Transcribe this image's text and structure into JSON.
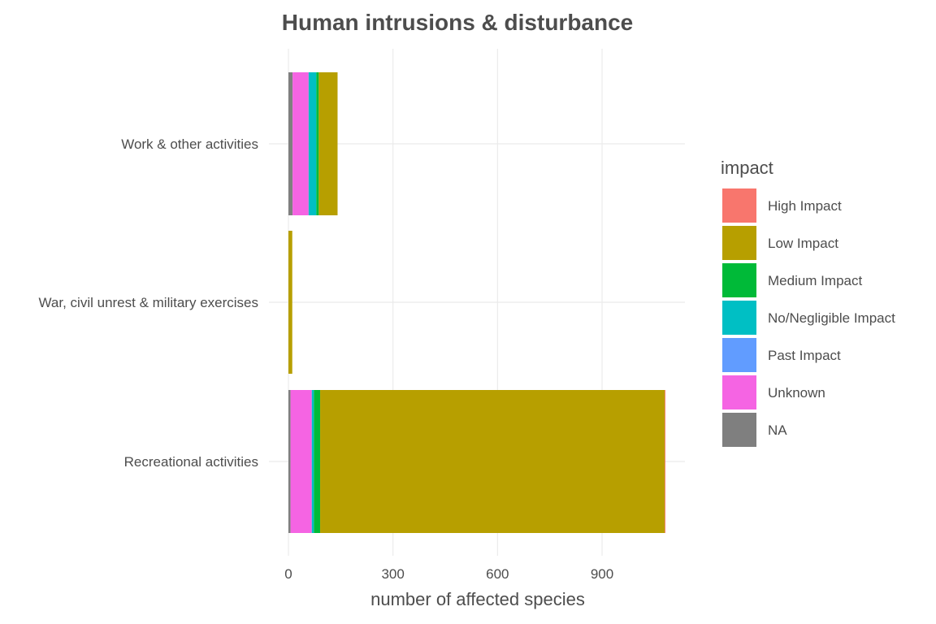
{
  "chart_data": {
    "type": "bar",
    "orientation": "horizontal",
    "stacked": true,
    "title": "Human intrusions & disturbance",
    "xlabel": "number of affected species",
    "ylabel": "",
    "xlim": [
      0,
      1140
    ],
    "x_ticks": [
      "0",
      "300",
      "600",
      "900"
    ],
    "x_tick_values": [
      0,
      300,
      600,
      900
    ],
    "categories": [
      "Work & other activities",
      "War, civil unrest & military exercises",
      "Recreational activities"
    ],
    "grid": true,
    "legend": {
      "title": "impact",
      "placement": "right"
    },
    "series": [
      {
        "name": "NA",
        "color": "#7f7f7f",
        "values": [
          12,
          0,
          6
        ]
      },
      {
        "name": "Unknown",
        "color": "#f564e3",
        "values": [
          46,
          0,
          61
        ]
      },
      {
        "name": "Past Impact",
        "color": "#619cff",
        "values": [
          0,
          0,
          0
        ]
      },
      {
        "name": "No/Negligible Impact",
        "color": "#00bfc4",
        "values": [
          22,
          0,
          6
        ]
      },
      {
        "name": "Medium Impact",
        "color": "#00ba38",
        "values": [
          7,
          0,
          18
        ]
      },
      {
        "name": "Low Impact",
        "color": "#b79f00",
        "values": [
          54,
          11,
          989
        ]
      },
      {
        "name": "High Impact",
        "color": "#f8766d",
        "values": [
          0,
          0,
          2
        ]
      }
    ],
    "legend_order": [
      "High Impact",
      "Low Impact",
      "Medium Impact",
      "No/Negligible Impact",
      "Past Impact",
      "Unknown",
      "NA"
    ]
  }
}
